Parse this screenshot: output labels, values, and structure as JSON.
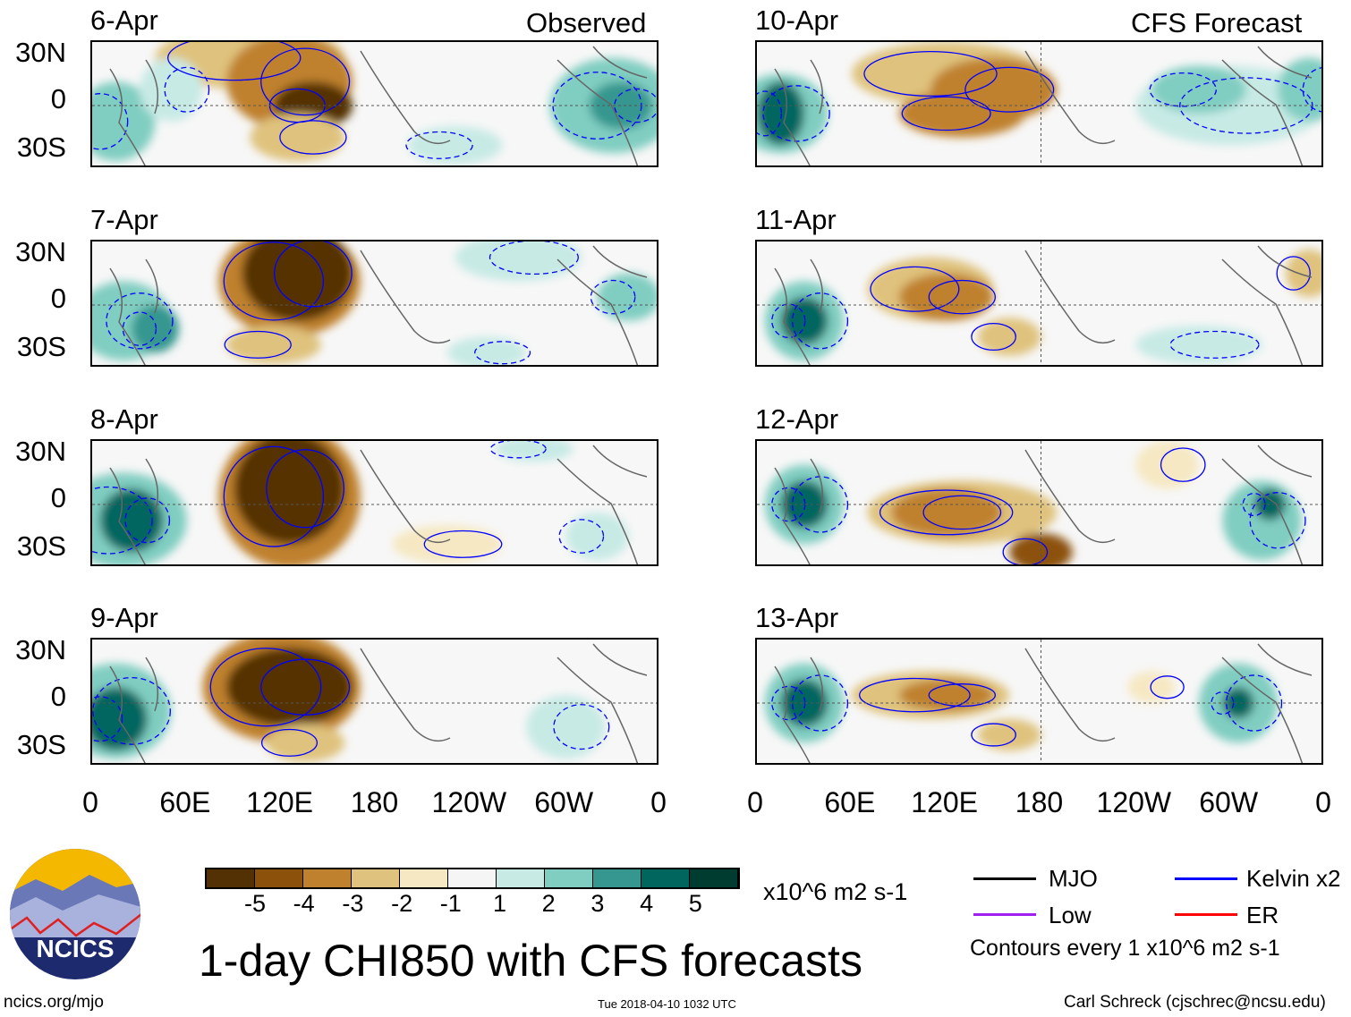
{
  "chart_data": {
    "type": "heatmap",
    "title": "1-day CHI850 with CFS forecasts",
    "column_titles": [
      "Observed",
      "CFS Forecast"
    ],
    "panels": [
      {
        "date": "6-Apr",
        "column": "Observed"
      },
      {
        "date": "7-Apr",
        "column": "Observed"
      },
      {
        "date": "8-Apr",
        "column": "Observed"
      },
      {
        "date": "9-Apr",
        "column": "Observed"
      },
      {
        "date": "10-Apr",
        "column": "CFS Forecast"
      },
      {
        "date": "11-Apr",
        "column": "CFS Forecast"
      },
      {
        "date": "12-Apr",
        "column": "CFS Forecast"
      },
      {
        "date": "13-Apr",
        "column": "CFS Forecast"
      }
    ],
    "y_ticks": [
      "30N",
      "0",
      "30S"
    ],
    "x_ticks": [
      "0",
      "60E",
      "120E",
      "180",
      "120W",
      "60W",
      "0"
    ],
    "colorbar": {
      "ticks": [
        "-5",
        "-4",
        "-3",
        "-2",
        "-1",
        "1",
        "2",
        "3",
        "4",
        "5"
      ],
      "colors": [
        "#543005",
        "#8c510a",
        "#bf812d",
        "#dfc27d",
        "#f6e8c3",
        "#f5f5f5",
        "#c7eae5",
        "#80cdc1",
        "#35978f",
        "#01665e",
        "#003c30"
      ],
      "units": "x10^6 m2 s-1"
    },
    "legend": [
      {
        "label": "MJO",
        "color": "#000000"
      },
      {
        "label": "Kelvin x2",
        "color": "#0000ff"
      },
      {
        "label": "Low",
        "color": "#a020f0"
      },
      {
        "label": "ER",
        "color": "#ff0000"
      }
    ],
    "contour_note": "Contours every 1 x10^6 m2 s-1"
  },
  "footer": {
    "logo_text": "NCICS",
    "url": "ncics.org/mjo",
    "timestamp": "Tue 2018-04-10 1032 UTC",
    "author": "Carl Schreck (cjschrec@ncsu.edu)"
  }
}
